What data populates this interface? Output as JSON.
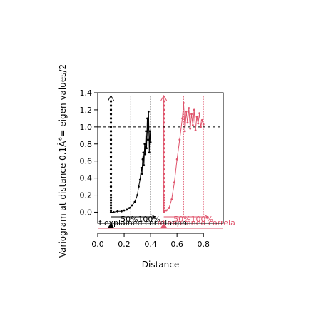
{
  "chart_data": {
    "type": "line",
    "xlabel": "Distance",
    "ylabel": "Variogram at distance 0.1Â°= eigen values/2",
    "xlim": [
      0.0,
      0.95
    ],
    "ylim": [
      -0.13,
      1.4
    ],
    "x_ticks": [
      0.0,
      0.2,
      0.4,
      0.6,
      0.8
    ],
    "x_tick_labels": [
      "0.0",
      "0.2",
      "0.4",
      "0.6",
      "0.8"
    ],
    "y_ticks": [
      0.0,
      0.2,
      0.4,
      0.6,
      0.8,
      1.0,
      1.2,
      1.4
    ],
    "y_tick_labels": [
      "0.0",
      "0.2",
      "0.4",
      "0.6",
      "0.8",
      "1.0",
      "1.2",
      "1.4"
    ],
    "reference_line": {
      "y": 1.0,
      "style": "dashed"
    },
    "series": [
      {
        "color": "#000000",
        "base_x": 0.1,
        "markers_x_at_base": [
          0.0,
          0.02,
          0.05,
          0.08,
          0.11,
          0.14,
          0.17,
          0.2,
          0.25,
          0.3,
          0.35,
          0.4,
          0.45,
          0.5,
          0.55,
          0.6,
          0.65,
          0.7,
          0.75,
          0.8,
          0.85,
          0.9,
          0.95,
          1.0,
          1.05,
          1.1,
          1.15,
          1.2,
          1.25,
          1.3
        ],
        "curve_x": [
          0.1,
          0.12,
          0.15,
          0.18,
          0.2,
          0.22,
          0.24,
          0.26,
          0.28,
          0.3,
          0.31,
          0.32,
          0.33,
          0.335,
          0.34,
          0.345,
          0.35,
          0.355,
          0.36,
          0.365,
          0.37,
          0.375,
          0.38,
          0.385,
          0.39,
          0.395,
          0.4
        ],
        "curve_y": [
          0.0,
          0.0,
          0.01,
          0.01,
          0.02,
          0.03,
          0.05,
          0.08,
          0.12,
          0.2,
          0.3,
          0.38,
          0.52,
          0.45,
          0.62,
          0.7,
          0.55,
          0.8,
          0.68,
          0.95,
          0.75,
          1.1,
          0.85,
          1.18,
          0.7,
          0.95,
          0.82
        ],
        "vlines_x": [
          0.25,
          0.4
        ],
        "vline_labels": [
          "50%",
          "100%"
        ],
        "arrow_x": 0.1,
        "baseline_label": "f explained correlation"
      },
      {
        "color": "#DF536B",
        "base_x": 0.5,
        "markers_x_at_base": [
          0.0,
          0.02,
          0.05,
          0.08,
          0.11,
          0.14,
          0.17,
          0.2,
          0.25,
          0.3,
          0.35,
          0.4,
          0.45,
          0.5,
          0.55,
          0.6,
          0.65,
          0.7,
          0.75,
          0.8,
          0.85,
          0.9,
          0.95,
          1.0,
          1.05,
          1.1,
          1.15,
          1.2,
          1.25,
          1.3
        ],
        "curve_x": [
          0.5,
          0.52,
          0.54,
          0.56,
          0.58,
          0.6,
          0.62,
          0.64,
          0.65,
          0.66,
          0.67,
          0.68,
          0.69,
          0.7,
          0.71,
          0.72,
          0.73,
          0.74,
          0.75,
          0.76,
          0.77,
          0.78,
          0.79,
          0.8
        ],
        "curve_y": [
          0.0,
          0.02,
          0.05,
          0.15,
          0.35,
          0.62,
          0.85,
          1.1,
          1.28,
          0.95,
          1.18,
          1.05,
          1.22,
          0.98,
          1.15,
          1.02,
          1.2,
          0.96,
          1.12,
          1.04,
          1.16,
          1.0,
          1.08,
          1.03
        ],
        "vlines_x": [
          0.65,
          0.8
        ],
        "vline_labels": [
          "50%",
          "100%"
        ],
        "arrow_x": 0.5,
        "baseline_label": "of explained correla"
      }
    ]
  }
}
